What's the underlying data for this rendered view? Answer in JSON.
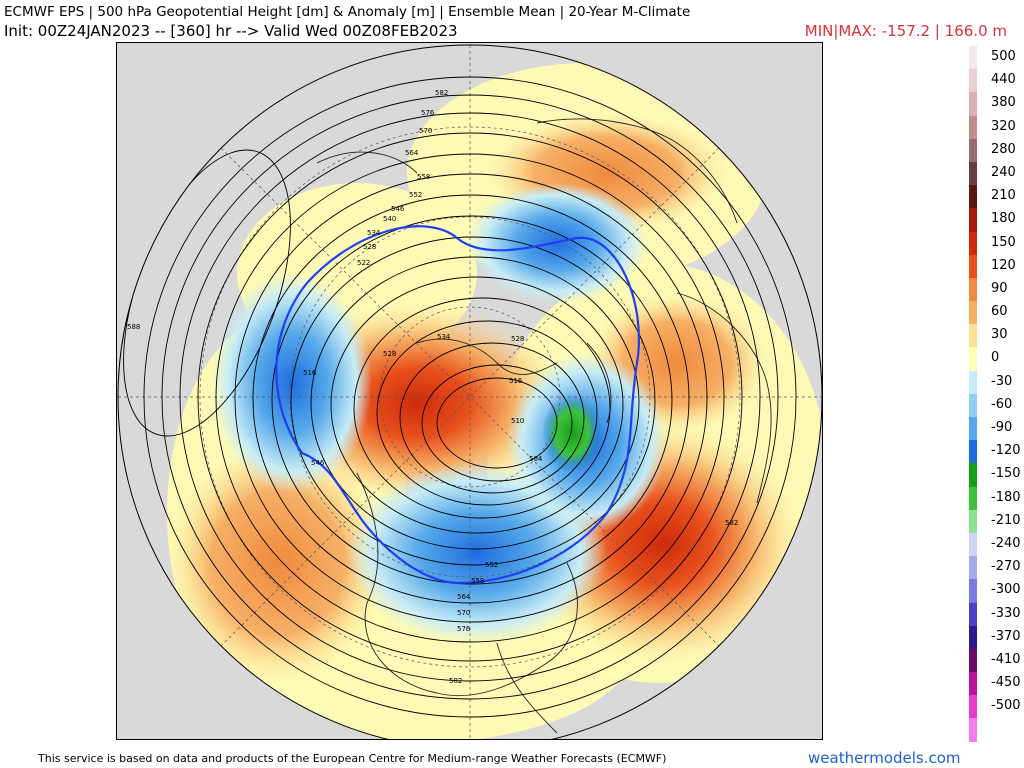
{
  "header": {
    "title": "ECMWF EPS | 500 hPa Geopotential Height [dm] & Anomaly [m] | Ensemble Mean | 20-Year M-Climate",
    "subtitle": "Init: 00Z24JAN2023 -- [360] hr --> Valid Wed 00Z08FEB2023",
    "minmax": "MIN|MAX: -157.2 | 166.0 m"
  },
  "map": {
    "projection": "north-polar-stereographic",
    "contour_labels": [
      "582",
      "576",
      "570",
      "564",
      "558",
      "552",
      "546",
      "540",
      "534",
      "528",
      "522",
      "516",
      "528",
      "534",
      "528",
      "516",
      "504",
      "510",
      "588",
      "546",
      "582",
      "582",
      "576",
      "570",
      "564",
      "558",
      "552"
    ],
    "anomaly_features": [
      {
        "region": "Northwest Atlantic / Pacific coast",
        "sign": "negative",
        "peak": -90
      },
      {
        "region": "Northern Canada / Greenland",
        "sign": "positive",
        "peak": 150
      },
      {
        "region": "Eastern Siberia",
        "sign": "negative",
        "peak": -150
      },
      {
        "region": "Europe / Atlantic",
        "sign": "positive",
        "peak": 120
      },
      {
        "region": "Eastern Pacific",
        "sign": "positive",
        "peak": 120
      }
    ]
  },
  "legend": {
    "items": [
      {
        "label": "500",
        "color": "#f6e8ea"
      },
      {
        "label": "440",
        "color": "#ecd0d2"
      },
      {
        "label": "380",
        "color": "#dcb0b2"
      },
      {
        "label": "320",
        "color": "#c08c8e"
      },
      {
        "label": "280",
        "color": "#9a6b6d"
      },
      {
        "label": "240",
        "color": "#6a3e3e"
      },
      {
        "label": "210",
        "color": "#5a1610"
      },
      {
        "label": "180",
        "color": "#a51b0e"
      },
      {
        "label": "150",
        "color": "#cf2a0c"
      },
      {
        "label": "120",
        "color": "#e8511c"
      },
      {
        "label": "90",
        "color": "#f08a3e"
      },
      {
        "label": "60",
        "color": "#f6b066"
      },
      {
        "label": "30",
        "color": "#fde095"
      },
      {
        "label": "0",
        "color": "#fffcb4"
      },
      {
        "label": "-30",
        "color": "#c8ecf5"
      },
      {
        "label": "-60",
        "color": "#8fd0ef"
      },
      {
        "label": "-90",
        "color": "#56a9ea"
      },
      {
        "label": "-120",
        "color": "#1e6de0"
      },
      {
        "label": "-150",
        "color": "#16a016"
      },
      {
        "label": "-180",
        "color": "#3dc23d"
      },
      {
        "label": "-210",
        "color": "#8ce28c"
      },
      {
        "label": "-240",
        "color": "#cfd3f5"
      },
      {
        "label": "-270",
        "color": "#a5a9ee"
      },
      {
        "label": "-300",
        "color": "#7a78e2"
      },
      {
        "label": "-330",
        "color": "#4a3fc6"
      },
      {
        "label": "-370",
        "color": "#2a1a8e"
      },
      {
        "label": "-410",
        "color": "#6a0a6a"
      },
      {
        "label": "-450",
        "color": "#b8159a"
      },
      {
        "label": "-500",
        "color": "#e83dd0"
      },
      {
        "label": "",
        "color": "#f27de8"
      }
    ]
  },
  "footer": {
    "disclaimer": "This service is based on data and products of the European Centre for Medium-range Weather Forecasts (ECMWF)",
    "brand": "weathermodels.com"
  }
}
